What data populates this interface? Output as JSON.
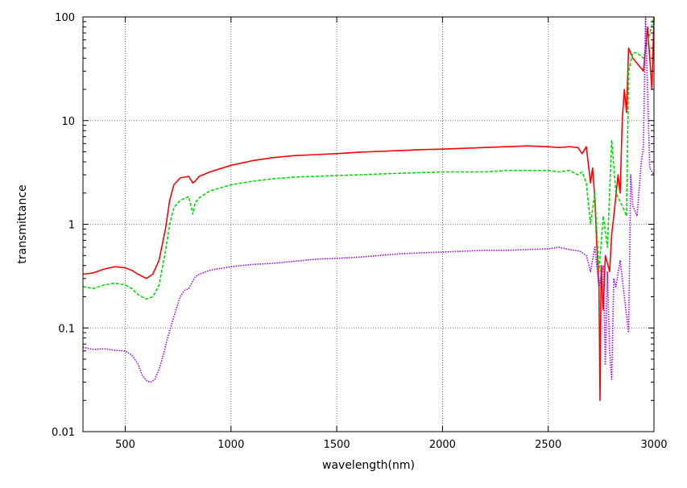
{
  "chart_data": {
    "type": "line",
    "xlabel": "wavelength(nm)",
    "ylabel": "transmittance",
    "xlim": [
      300,
      3000
    ],
    "ylim": [
      0.01,
      100
    ],
    "yscale": "log",
    "grid": true,
    "x_ticks": [
      {
        "value": 500,
        "label": "500"
      },
      {
        "value": 1000,
        "label": "1000"
      },
      {
        "value": 1500,
        "label": "1500"
      },
      {
        "value": 2000,
        "label": "2000"
      },
      {
        "value": 2500,
        "label": "2500"
      },
      {
        "value": 3000,
        "label": "3000"
      }
    ],
    "y_ticks": [
      {
        "value": 0.01,
        "label": "0.01"
      },
      {
        "value": 0.1,
        "label": "0.1"
      },
      {
        "value": 1,
        "label": "1"
      },
      {
        "value": 10,
        "label": "10"
      },
      {
        "value": 100,
        "label": "100"
      }
    ],
    "series": [
      {
        "color": "#ff0000",
        "dash": "solid",
        "x": [
          300,
          350,
          400,
          450,
          500,
          530,
          560,
          600,
          630,
          660,
          690,
          710,
          730,
          760,
          800,
          820,
          830,
          850,
          900,
          1000,
          1100,
          1200,
          1300,
          1400,
          1500,
          1600,
          1700,
          1800,
          1900,
          2000,
          2100,
          2200,
          2300,
          2400,
          2500,
          2550,
          2600,
          2640,
          2660,
          2680,
          2700,
          2710,
          2720,
          2730,
          2740,
          2745,
          2750,
          2760,
          2770,
          2790,
          2800,
          2810,
          2830,
          2840,
          2850,
          2860,
          2870,
          2880,
          2900,
          2950,
          2970,
          2990,
          3000
        ],
        "y": [
          0.33,
          0.34,
          0.37,
          0.39,
          0.38,
          0.36,
          0.33,
          0.3,
          0.33,
          0.45,
          0.9,
          1.7,
          2.4,
          2.8,
          2.9,
          2.5,
          2.6,
          2.9,
          3.2,
          3.7,
          4.1,
          4.4,
          4.6,
          4.7,
          4.8,
          4.95,
          5.05,
          5.15,
          5.25,
          5.3,
          5.4,
          5.5,
          5.6,
          5.7,
          5.6,
          5.5,
          5.6,
          5.5,
          4.8,
          5.6,
          2.5,
          3.5,
          1.8,
          0.6,
          0.25,
          0.02,
          0.4,
          0.15,
          0.5,
          0.35,
          0.8,
          1.2,
          3.0,
          2.0,
          10.0,
          20.0,
          12.0,
          50.0,
          40.0,
          30.0,
          80.0,
          20.0,
          100.0
        ]
      },
      {
        "color": "#00dd00",
        "dash": "dashed",
        "x": [
          300,
          350,
          400,
          450,
          500,
          530,
          560,
          600,
          630,
          660,
          690,
          710,
          730,
          760,
          800,
          820,
          830,
          850,
          900,
          1000,
          1100,
          1200,
          1300,
          1400,
          1500,
          1600,
          1700,
          1800,
          1900,
          2000,
          2100,
          2200,
          2300,
          2400,
          2500,
          2550,
          2600,
          2640,
          2660,
          2680,
          2700,
          2720,
          2740,
          2760,
          2780,
          2800,
          2820,
          2850,
          2870,
          2880,
          2900,
          2920,
          2950,
          3000
        ],
        "y": [
          0.25,
          0.24,
          0.26,
          0.27,
          0.26,
          0.24,
          0.21,
          0.19,
          0.2,
          0.26,
          0.55,
          1.0,
          1.45,
          1.7,
          1.85,
          1.25,
          1.6,
          1.8,
          2.1,
          2.4,
          2.6,
          2.75,
          2.85,
          2.9,
          2.95,
          3.0,
          3.05,
          3.1,
          3.15,
          3.2,
          3.2,
          3.2,
          3.3,
          3.3,
          3.3,
          3.2,
          3.3,
          3.0,
          3.2,
          2.5,
          1.0,
          2.0,
          0.35,
          1.2,
          0.6,
          6.5,
          2.0,
          1.5,
          1.2,
          30.0,
          45.0,
          45.0,
          40.0,
          100.0
        ]
      },
      {
        "color": "#a000ff",
        "dash": "dotted",
        "x": [
          300,
          350,
          400,
          450,
          500,
          530,
          560,
          580,
          600,
          620,
          640,
          660,
          680,
          700,
          720,
          740,
          760,
          780,
          800,
          830,
          850,
          900,
          1000,
          1100,
          1200,
          1300,
          1400,
          1500,
          1600,
          1700,
          1800,
          1900,
          2000,
          2100,
          2200,
          2300,
          2400,
          2500,
          2550,
          2600,
          2650,
          2680,
          2700,
          2720,
          2740,
          2760,
          2770,
          2780,
          2790,
          2800,
          2810,
          2820,
          2840,
          2860,
          2880,
          2890,
          2900,
          2920,
          2940,
          2950,
          2960,
          2980,
          3000
        ],
        "y": [
          0.065,
          0.062,
          0.063,
          0.061,
          0.06,
          0.055,
          0.045,
          0.035,
          0.031,
          0.03,
          0.032,
          0.04,
          0.055,
          0.08,
          0.11,
          0.15,
          0.2,
          0.23,
          0.24,
          0.31,
          0.33,
          0.36,
          0.39,
          0.41,
          0.42,
          0.44,
          0.46,
          0.47,
          0.48,
          0.5,
          0.52,
          0.53,
          0.54,
          0.55,
          0.56,
          0.56,
          0.57,
          0.58,
          0.6,
          0.57,
          0.55,
          0.5,
          0.35,
          0.6,
          0.25,
          0.4,
          0.045,
          0.35,
          0.06,
          0.032,
          0.3,
          0.25,
          0.45,
          0.2,
          0.09,
          3.0,
          1.5,
          1.2,
          4.0,
          5.5,
          100.0,
          3.5,
          3.0
        ]
      }
    ]
  }
}
